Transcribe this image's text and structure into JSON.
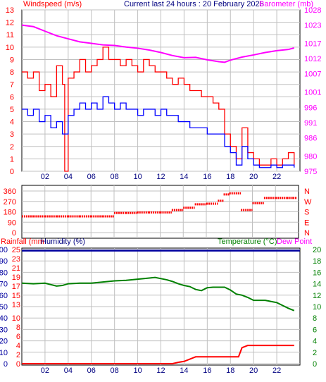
{
  "header": {
    "windspeed_label": "Windspeed (m/s)",
    "current_label": "Current last 24 hours : 20 February 2026",
    "barometer_label": "Barometer (mb)"
  },
  "bottom_header": {
    "rainfall_label": "Rainfall (mm",
    "humidity_label": "Humidity (%)",
    "temperature_label": "Temperature (°C)",
    "dewpoint_label": "Dew Point"
  },
  "colors": {
    "windspeed": "#ff0000",
    "wind_gust": "#0000ff",
    "barometer": "#ff00ff",
    "temperature": "#008000",
    "humidity": "#0000a0",
    "rainfall": "#ff0000",
    "background": "#ffffff",
    "grid": "#c0c0c0"
  },
  "chart_data": [
    {
      "type": "line",
      "name": "wind-barometer",
      "x_tick_labels": [
        "02",
        "04",
        "06",
        "08",
        "10",
        "12",
        "14",
        "16",
        "18",
        "20",
        "22"
      ],
      "x_tick_hours": [
        2,
        4,
        6,
        8,
        10,
        12,
        14,
        16,
        18,
        20,
        22
      ],
      "xlim": [
        0,
        24
      ],
      "y_left_ticks": [
        0,
        1,
        2,
        3,
        4,
        5,
        6,
        7,
        8,
        9,
        10,
        11,
        12,
        13
      ],
      "y_left_range": [
        0,
        13
      ],
      "y_right_ticks": [
        975,
        980,
        986,
        991,
        996,
        1001,
        1007,
        1012,
        1017,
        1023,
        1028
      ],
      "y_right_range": [
        975,
        1028
      ],
      "grid": true,
      "series": [
        {
          "name": "Windspeed",
          "axis": "left",
          "hours": [
            0,
            0.5,
            1,
            1.5,
            2,
            2.5,
            3,
            3.5,
            3.7,
            4,
            4.5,
            5,
            5.5,
            6,
            6.5,
            7,
            7.5,
            8,
            8.5,
            9,
            9.5,
            10,
            10.5,
            11,
            11.5,
            12,
            12.5,
            13,
            13.5,
            14,
            14.5,
            15,
            15.5,
            16,
            16.5,
            17,
            17.5,
            18,
            18.5,
            19,
            19.5,
            20,
            20.5,
            21,
            21.5,
            22,
            22.5,
            23,
            23.5
          ],
          "values": [
            8,
            7.5,
            8,
            6.5,
            7,
            6,
            8.5,
            7,
            0,
            7.5,
            8,
            9,
            8,
            8.5,
            9,
            10,
            9,
            9,
            8.5,
            9,
            8.5,
            8,
            9,
            8.5,
            8,
            8,
            7.5,
            7,
            7.5,
            7,
            6.5,
            6.5,
            6,
            6,
            5.5,
            5,
            3,
            2,
            1,
            3.5,
            1.5,
            1,
            0.5,
            0.5,
            1,
            0.5,
            1,
            1.5,
            0.5
          ]
        },
        {
          "name": "Wind gust",
          "axis": "left",
          "hours": [
            0,
            0.5,
            1,
            1.5,
            2,
            2.5,
            3,
            3.5,
            4,
            4.5,
            5,
            5.5,
            6,
            6.5,
            7,
            7.5,
            8,
            8.5,
            9,
            9.5,
            10,
            10.5,
            11,
            11.5,
            12,
            12.5,
            13,
            13.5,
            14,
            14.5,
            15,
            15.5,
            16,
            16.5,
            17,
            17.5,
            18,
            18.5,
            19,
            19.5,
            20,
            20.5,
            21,
            21.5,
            22,
            22.5,
            23,
            23.5
          ],
          "values": [
            5,
            4.5,
            5,
            4,
            4.5,
            3.5,
            4,
            3,
            4.5,
            5,
            5.5,
            5,
            5.5,
            5,
            6,
            5.5,
            5,
            5.5,
            5,
            5,
            4.5,
            5,
            5,
            4.5,
            5,
            4.5,
            4.5,
            4,
            4,
            3.5,
            3.5,
            3.5,
            3,
            3,
            3,
            2,
            1.5,
            0.5,
            2,
            1,
            0.5,
            0.3,
            0.3,
            0.5,
            0.3,
            0.5,
            0.5,
            0.3
          ]
        },
        {
          "name": "Barometer",
          "axis": "right",
          "hours": [
            0,
            1,
            2,
            3,
            4,
            5,
            6,
            7,
            8,
            9,
            10,
            11,
            12,
            13,
            14,
            15,
            16,
            17,
            17.5,
            18,
            19,
            20,
            21,
            22,
            23,
            23.5
          ],
          "values": [
            1023,
            1022.5,
            1021,
            1019.5,
            1018.5,
            1017.5,
            1017,
            1016.5,
            1016.3,
            1015.8,
            1015.4,
            1014.8,
            1014,
            1013,
            1012.3,
            1012.4,
            1011.6,
            1011,
            1010.8,
            1011.5,
            1012.5,
            1013.2,
            1014,
            1014.6,
            1015,
            1015.5
          ]
        }
      ]
    },
    {
      "type": "scatter",
      "name": "wind-direction",
      "y_left_ticks": [
        0,
        90,
        180,
        270,
        360
      ],
      "y_range": [
        0,
        360
      ],
      "compass_labels": [
        "N",
        "W",
        "S",
        "E",
        "N"
      ],
      "xlim": [
        0,
        24
      ],
      "grid": true,
      "series": [
        {
          "name": "Wind direction",
          "hours": [
            0,
            1,
            2,
            3,
            4,
            5,
            6,
            7,
            8,
            9,
            10,
            11,
            12,
            13,
            14,
            15,
            16,
            17,
            17.5,
            18,
            19,
            20,
            21,
            22,
            23,
            23.5
          ],
          "values": [
            140,
            140,
            140,
            140,
            140,
            140,
            140,
            140,
            170,
            170,
            175,
            175,
            175,
            195,
            215,
            245,
            250,
            275,
            330,
            340,
            195,
            255,
            300,
            300,
            300,
            300
          ]
        }
      ]
    },
    {
      "type": "line",
      "name": "rain-humidity-temperature",
      "y_left_ticks": [
        0,
        10,
        20,
        30,
        40,
        50,
        60,
        70,
        80,
        90,
        100
      ],
      "y_left_range": [
        0,
        100
      ],
      "y_rain_ticks": [
        0,
        2,
        4,
        6,
        8,
        10,
        13,
        15,
        17,
        19,
        21,
        23,
        25
      ],
      "y_rain_range": [
        0,
        25
      ],
      "y_right_ticks": [
        0,
        2,
        4,
        6,
        8,
        10,
        12,
        14,
        16,
        18,
        20
      ],
      "y_right_range": [
        0,
        20
      ],
      "xlim": [
        0,
        24
      ],
      "grid": true,
      "series": [
        {
          "name": "Temperature",
          "axis": "right",
          "hours": [
            0,
            1,
            2,
            3,
            3.5,
            4,
            5,
            6,
            7,
            8,
            9,
            10,
            11,
            11.5,
            12,
            12.5,
            13,
            13.5,
            14,
            14.5,
            15,
            15.5,
            16,
            16.5,
            17,
            17.5,
            18,
            18.5,
            19,
            19.5,
            20,
            21,
            21.5,
            22,
            22.5,
            23,
            23.5
          ],
          "values": [
            14.1,
            14,
            14.1,
            13.6,
            13.7,
            14,
            14.1,
            14.1,
            14.3,
            14.5,
            14.6,
            14.8,
            15,
            15.1,
            14.9,
            14.7,
            14.4,
            14,
            13.7,
            13.5,
            13,
            12.8,
            13.3,
            13.4,
            13.4,
            13.4,
            12.9,
            12.2,
            12,
            11.6,
            11.1,
            11.1,
            10.9,
            10.7,
            10.2,
            9.7,
            9.3
          ]
        },
        {
          "name": "Rainfall",
          "axis": "rain",
          "hours": [
            0,
            13,
            13.5,
            14,
            14.5,
            15,
            16,
            18,
            18.7,
            19,
            19.5,
            20,
            21,
            22,
            23,
            23.5
          ],
          "values": [
            0,
            0,
            0.3,
            0.5,
            1,
            1.5,
            1.5,
            1.5,
            1.5,
            3.5,
            4,
            4,
            4,
            4,
            4,
            4
          ]
        },
        {
          "name": "Humidity",
          "axis": "left",
          "hours": [
            0,
            24
          ],
          "values": [
            99,
            99
          ]
        }
      ]
    }
  ]
}
